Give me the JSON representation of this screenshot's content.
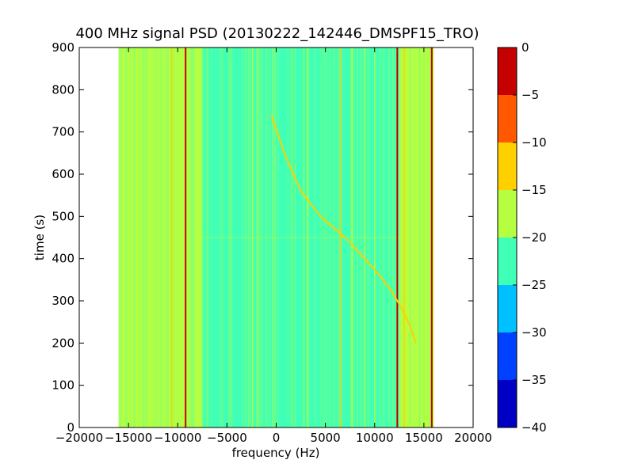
{
  "chart_data": {
    "type": "heatmap",
    "title": "400 MHz signal PSD (20130222_142446_DMSPF15_TRO)",
    "xlabel": "frequency (Hz)",
    "ylabel": "time (s)",
    "xlim": [
      -20000,
      20000
    ],
    "ylim": [
      0,
      900
    ],
    "x_ticks": [
      -20000,
      -15000,
      -10000,
      -5000,
      0,
      5000,
      10000,
      15000,
      20000
    ],
    "x_tick_labels": [
      "−20000",
      "−15000",
      "−10000",
      "−5000",
      "0",
      "5000",
      "10000",
      "15000",
      "20000"
    ],
    "y_ticks": [
      0,
      100,
      200,
      300,
      400,
      500,
      600,
      700,
      800,
      900
    ],
    "y_tick_labels": [
      "0",
      "100",
      "200",
      "300",
      "400",
      "500",
      "600",
      "700",
      "800",
      "900"
    ],
    "data_extent": {
      "freq": [
        -16000,
        16000
      ],
      "time": [
        0,
        900
      ]
    },
    "background_bands": [
      {
        "freq": [
          -16000,
          -7500
        ],
        "level_db": -18
      },
      {
        "freq": [
          -7500,
          12500
        ],
        "level_db": -22
      },
      {
        "freq": [
          12500,
          16000
        ],
        "level_db": -18
      }
    ],
    "tones": [
      {
        "freq": -9200,
        "level_db": -2
      },
      {
        "freq": -10600,
        "level_db": -12
      },
      {
        "freq": -14200,
        "level_db": -16
      },
      {
        "freq": -2400,
        "level_db": -18
      },
      {
        "freq": 3200,
        "level_db": -16
      },
      {
        "freq": 6500,
        "level_db": -13
      },
      {
        "freq": 7700,
        "level_db": -16
      },
      {
        "freq": 9000,
        "level_db": -16
      },
      {
        "freq": 10000,
        "level_db": -18
      },
      {
        "freq": 12300,
        "level_db": -4
      },
      {
        "freq": 13000,
        "level_db": -13
      },
      {
        "freq": 15800,
        "level_db": -2
      }
    ],
    "doppler_trace": {
      "level_db": -12,
      "points": [
        [
          -500,
          740
        ],
        [
          1000,
          640
        ],
        [
          2500,
          560
        ],
        [
          4500,
          500
        ],
        [
          7000,
          450
        ],
        [
          9000,
          400
        ],
        [
          10500,
          360
        ],
        [
          11800,
          320
        ],
        [
          12800,
          280
        ],
        [
          13600,
          240
        ],
        [
          14200,
          200
        ]
      ]
    },
    "colorbar": {
      "min": -40,
      "max": 0,
      "ticks": [
        0,
        -5,
        -10,
        -15,
        -20,
        -25,
        -30,
        -35,
        -40
      ],
      "tick_labels": [
        "0",
        "−5",
        "−10",
        "−15",
        "−20",
        "−25",
        "−30",
        "−35",
        "−40"
      ],
      "bins": [
        {
          "from": -40,
          "to": -35,
          "color": "#0000c4"
        },
        {
          "from": -35,
          "to": -30,
          "color": "#0040ff"
        },
        {
          "from": -30,
          "to": -25,
          "color": "#00c0ff"
        },
        {
          "from": -25,
          "to": -20,
          "color": "#40ffb6"
        },
        {
          "from": -20,
          "to": -15,
          "color": "#b6ff40"
        },
        {
          "from": -15,
          "to": -10,
          "color": "#ffd000"
        },
        {
          "from": -10,
          "to": -5,
          "color": "#ff5800"
        },
        {
          "from": -5,
          "to": 0,
          "color": "#c40000"
        }
      ]
    }
  }
}
